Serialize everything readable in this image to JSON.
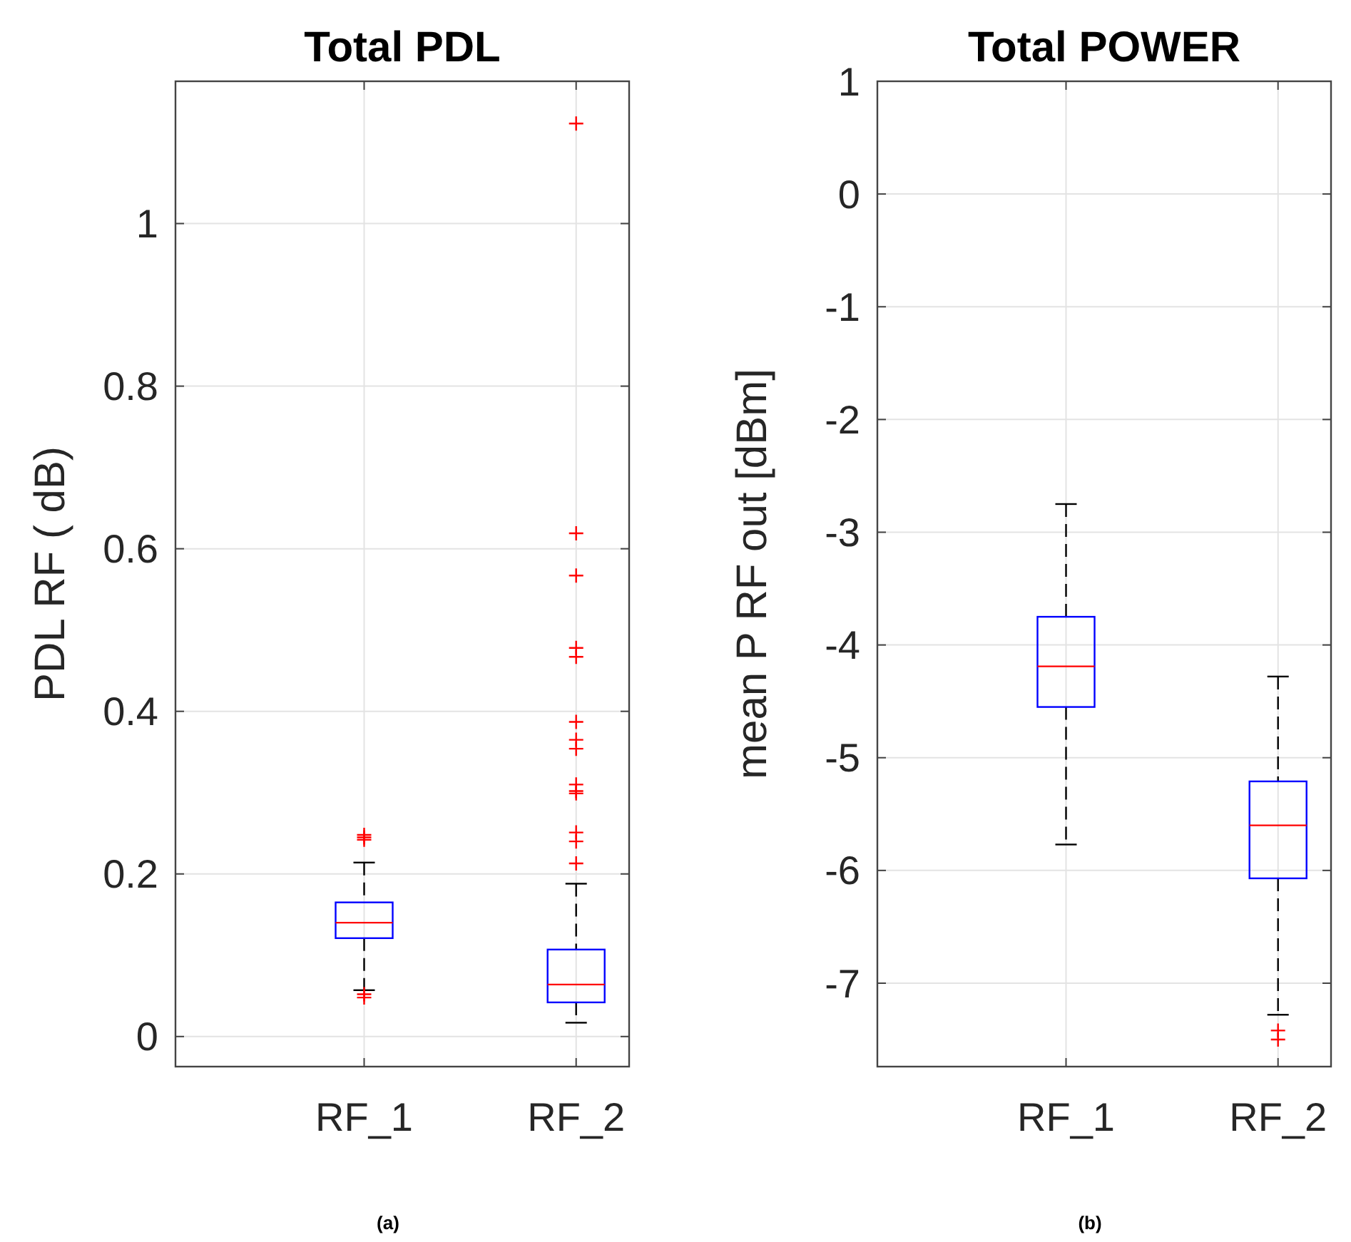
{
  "chart_data": [
    {
      "type": "box",
      "title": "Total PDL",
      "ylabel": "PDL RF ( dB)",
      "categories": [
        "RF_1",
        "RF_2"
      ],
      "ylim": [
        -0.037,
        1.175
      ],
      "yticks": [
        0,
        0.2,
        0.4,
        0.6,
        0.8,
        1
      ],
      "grid": true,
      "marker": "cross",
      "line_style": "dashed",
      "annotations": [
        "(a)"
      ],
      "series": [
        {
          "color": "#0000ff",
          "boxes": [
            {
              "low": 0.057,
              "q1": 0.121,
              "median": 0.14,
              "q3": 0.165,
              "high": 0.214,
              "outliers": [
                0.242,
                0.245,
                0.248,
                0.052,
                0.048
              ]
            },
            {
              "low": 0.017,
              "q1": 0.042,
              "median": 0.064,
              "q3": 0.107,
              "high": 0.188,
              "outliers": [
                1.123,
                0.619,
                0.567,
                0.478,
                0.467,
                0.387,
                0.365,
                0.354,
                0.31,
                0.302,
                0.299,
                0.251,
                0.24,
                0.213
              ]
            }
          ]
        }
      ]
    },
    {
      "type": "box",
      "title": "Total POWER",
      "ylabel": "mean P RF out [dBm]",
      "categories": [
        "RF_1",
        "RF_2"
      ],
      "ylim": [
        -7.74,
        1
      ],
      "yticks": [
        -7,
        -6,
        -5,
        -4,
        -3,
        -2,
        -1,
        0,
        1
      ],
      "grid": true,
      "marker": "cross",
      "line_style": "dashed",
      "annotations": [
        "(b)"
      ],
      "series": [
        {
          "color": "#0000ff",
          "boxes": [
            {
              "low": -5.77,
              "q1": -4.55,
              "median": -4.19,
              "q3": -3.75,
              "high": -2.75
            },
            {
              "low": -7.28,
              "q1": -6.07,
              "median": -5.6,
              "q3": -5.21,
              "high": -4.28,
              "outliers": [
                -7.42,
                -7.5
              ]
            }
          ]
        }
      ]
    }
  ]
}
